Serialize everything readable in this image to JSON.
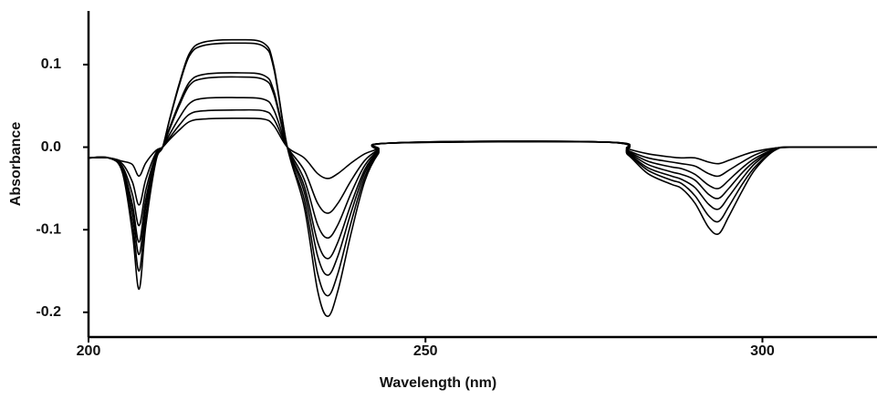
{
  "chart_data": {
    "type": "line",
    "xlabel": "Wavelength (nm)",
    "ylabel": "Absorbance",
    "xlim": [
      200,
      317
    ],
    "ylim": [
      -0.23,
      0.165
    ],
    "xticks": [
      200,
      250,
      300
    ],
    "yticks": [
      0.1,
      {
        "value": 0,
        "label": "0.0"
      },
      -0.1,
      -0.2
    ],
    "grid": false,
    "x": [
      200,
      203,
      205,
      206.5,
      207.5,
      208.5,
      210,
      211,
      212,
      213.5,
      215,
      217,
      222,
      226,
      227.5,
      229.5,
      232,
      234,
      235.5,
      237,
      239,
      241,
      243,
      245,
      277,
      280,
      283,
      286.5,
      288,
      290,
      292,
      293.5,
      295,
      297,
      299,
      302,
      305,
      317
    ],
    "series": [
      {
        "color": "#000000",
        "values": [
          -0.013,
          -0.013,
          -0.017,
          -0.021,
          -0.035,
          -0.019,
          -0.004,
          0,
          0.009,
          0.021,
          0.031,
          0.034,
          0.035,
          0.034,
          0.026,
          0,
          -0.013,
          -0.032,
          -0.038,
          -0.032,
          -0.019,
          -0.008,
          -0.002,
          0.005,
          0.006,
          -0.002,
          -0.008,
          -0.012,
          -0.013,
          -0.013,
          -0.018,
          -0.02,
          -0.016,
          -0.01,
          -0.005,
          -0.001,
          0,
          0
        ]
      },
      {
        "color": "#000000",
        "values": [
          -0.013,
          -0.013,
          -0.02,
          -0.042,
          -0.07,
          -0.039,
          -0.007,
          0,
          0.011,
          0.027,
          0.04,
          0.044,
          0.045,
          0.044,
          0.034,
          0,
          -0.028,
          -0.068,
          -0.08,
          -0.068,
          -0.04,
          -0.016,
          -0.003,
          0.005,
          0.006,
          -0.004,
          -0.013,
          -0.018,
          -0.02,
          -0.023,
          -0.032,
          -0.035,
          -0.028,
          -0.018,
          -0.009,
          -0.001,
          0,
          0
        ]
      },
      {
        "color": "#000000",
        "values": [
          -0.013,
          -0.013,
          -0.023,
          -0.057,
          -0.095,
          -0.052,
          -0.01,
          0,
          0.015,
          0.036,
          0.053,
          0.059,
          0.06,
          0.058,
          0.045,
          0,
          -0.039,
          -0.094,
          -0.11,
          -0.094,
          -0.055,
          -0.022,
          -0.004,
          0.005,
          0.006,
          -0.005,
          -0.017,
          -0.024,
          -0.026,
          -0.033,
          -0.046,
          -0.05,
          -0.04,
          -0.025,
          -0.013,
          -0.002,
          0,
          0
        ]
      },
      {
        "color": "#000000",
        "values": [
          -0.013,
          -0.013,
          -0.025,
          -0.069,
          -0.115,
          -0.063,
          -0.012,
          0,
          0.021,
          0.051,
          0.075,
          0.083,
          0.085,
          0.082,
          0.064,
          0,
          -0.047,
          -0.115,
          -0.135,
          -0.115,
          -0.068,
          -0.027,
          -0.005,
          0.005,
          0.006,
          -0.006,
          -0.021,
          -0.03,
          -0.033,
          -0.04,
          -0.057,
          -0.062,
          -0.05,
          -0.031,
          -0.016,
          -0.002,
          0,
          0
        ]
      },
      {
        "color": "#000000",
        "values": [
          -0.013,
          -0.013,
          -0.026,
          -0.078,
          -0.13,
          -0.072,
          -0.013,
          0,
          0.023,
          0.054,
          0.079,
          0.088,
          0.09,
          0.087,
          0.068,
          0,
          -0.054,
          -0.132,
          -0.155,
          -0.132,
          -0.078,
          -0.031,
          -0.006,
          0.005,
          0.006,
          -0.007,
          -0.025,
          -0.035,
          -0.039,
          -0.049,
          -0.069,
          -0.075,
          -0.06,
          -0.038,
          -0.019,
          -0.002,
          0,
          0
        ]
      },
      {
        "color": "#000000",
        "values": [
          -0.013,
          -0.013,
          -0.028,
          -0.09,
          -0.15,
          -0.083,
          -0.015,
          0,
          0.032,
          0.076,
          0.111,
          0.123,
          0.126,
          0.122,
          0.095,
          0,
          -0.063,
          -0.153,
          -0.18,
          -0.153,
          -0.09,
          -0.036,
          -0.007,
          0.005,
          0.006,
          -0.008,
          -0.028,
          -0.04,
          -0.044,
          -0.059,
          -0.083,
          -0.09,
          -0.072,
          -0.045,
          -0.023,
          -0.003,
          0,
          0
        ]
      },
      {
        "color": "#000000",
        "values": [
          -0.013,
          -0.013,
          -0.03,
          -0.103,
          -0.172,
          -0.095,
          -0.017,
          0,
          0.033,
          0.078,
          0.114,
          0.127,
          0.13,
          0.126,
          0.098,
          0,
          -0.072,
          -0.174,
          -0.205,
          -0.174,
          -0.103,
          -0.041,
          -0.008,
          0.005,
          0.006,
          -0.009,
          -0.032,
          -0.045,
          -0.05,
          -0.068,
          -0.097,
          -0.105,
          -0.084,
          -0.053,
          -0.026,
          -0.003,
          0,
          0
        ]
      }
    ]
  }
}
